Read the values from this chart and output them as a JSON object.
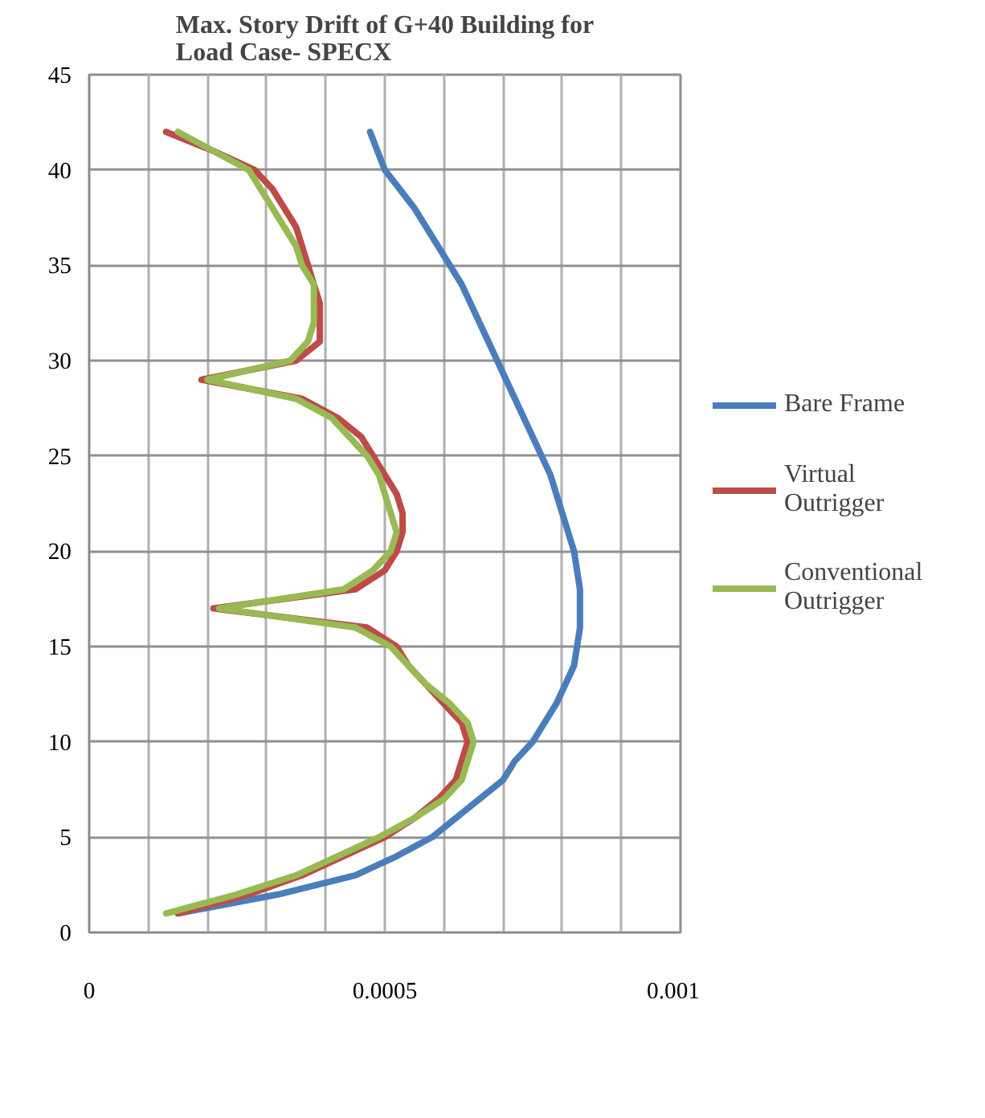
{
  "chart_data": {
    "type": "line",
    "title": "Max. Story Drift of G+40 Building for Load Case- SPECX",
    "xlim": [
      0,
      0.001
    ],
    "xticks": [
      0,
      {
        "value": 0.0001,
        "label": null
      },
      {
        "value": 0.0002,
        "label": null
      },
      {
        "value": 0.0003,
        "label": null
      },
      {
        "value": 0.0004,
        "label": null
      },
      0.0005,
      {
        "value": 0.0006,
        "label": null
      },
      {
        "value": 0.0007,
        "label": null
      },
      {
        "value": 0.0008,
        "label": null
      },
      {
        "value": 0.0009,
        "label": null
      },
      0.001
    ],
    "ylim": [
      0,
      45
    ],
    "yticks": [
      0,
      5,
      10,
      15,
      20,
      25,
      30,
      35,
      40,
      45
    ],
    "grid": true,
    "legend": "right",
    "line_style": "solid",
    "series": [
      {
        "name": "Bare Frame",
        "color": "#4a7ebb",
        "x": [
          0.00015,
          0.00032,
          0.00045,
          0.00052,
          0.00058,
          0.00062,
          0.00066,
          0.0007,
          0.00072,
          0.00075,
          0.00077,
          0.00079,
          0.00082,
          0.00083,
          0.00083,
          0.00082,
          0.0008,
          0.00078,
          0.00075,
          0.00072,
          0.00069,
          0.00066,
          0.00063,
          0.00059,
          0.00055,
          0.0005,
          0.000475
        ],
        "values": [
          1,
          2,
          3,
          4,
          5,
          6,
          7,
          8,
          9,
          10,
          11,
          12,
          14,
          16,
          18,
          20,
          22,
          24,
          26,
          28,
          30,
          32,
          34,
          36,
          38,
          40,
          42
        ]
      },
      {
        "name": "Virtual Outrigger",
        "color": "#be4b48",
        "x": [
          0.00015,
          0.00027,
          0.00036,
          0.00043,
          0.0005,
          0.00055,
          0.00059,
          0.00062,
          0.00063,
          0.00064,
          0.00063,
          0.0006,
          0.00057,
          0.00054,
          0.00052,
          0.00047,
          0.00021,
          0.00045,
          0.0005,
          0.00052,
          0.00053,
          0.00053,
          0.00052,
          0.0005,
          0.00048,
          0.00046,
          0.00042,
          0.00036,
          0.00019,
          0.00035,
          0.00039,
          0.00039,
          0.00039,
          0.00038,
          0.00037,
          0.00036,
          0.00035,
          0.00033,
          0.00031,
          0.00028,
          0.00021,
          0.00013
        ],
        "values": [
          1,
          2,
          3,
          4,
          5,
          6,
          7,
          8,
          9,
          10,
          11,
          12,
          13,
          14,
          15,
          16,
          17,
          18,
          19,
          20,
          21,
          22,
          23,
          24,
          25,
          26,
          27,
          28,
          29,
          30,
          31,
          32,
          33,
          34,
          35,
          36,
          37,
          38,
          39,
          40,
          41,
          42
        ]
      },
      {
        "name": "Conventional Outrigger",
        "color": "#98b954",
        "x": [
          0.00013,
          0.00025,
          0.00035,
          0.00042,
          0.00049,
          0.00055,
          0.0006,
          0.00063,
          0.00064,
          0.00065,
          0.00064,
          0.00061,
          0.00057,
          0.00054,
          0.00051,
          0.00045,
          0.00022,
          0.00043,
          0.00048,
          0.00051,
          0.00052,
          0.00051,
          0.0005,
          0.00049,
          0.00047,
          0.00044,
          0.00041,
          0.00035,
          0.0002,
          0.00034,
          0.00037,
          0.00038,
          0.00038,
          0.00038,
          0.00036,
          0.00035,
          0.00033,
          0.00031,
          0.00029,
          0.00027,
          0.00021,
          0.00015
        ],
        "values": [
          1,
          2,
          3,
          4,
          5,
          6,
          7,
          8,
          9,
          10,
          11,
          12,
          13,
          14,
          15,
          16,
          17,
          18,
          19,
          20,
          21,
          22,
          23,
          24,
          25,
          26,
          27,
          28,
          29,
          30,
          31,
          32,
          33,
          34,
          35,
          36,
          37,
          38,
          39,
          40,
          41,
          42
        ]
      }
    ]
  }
}
